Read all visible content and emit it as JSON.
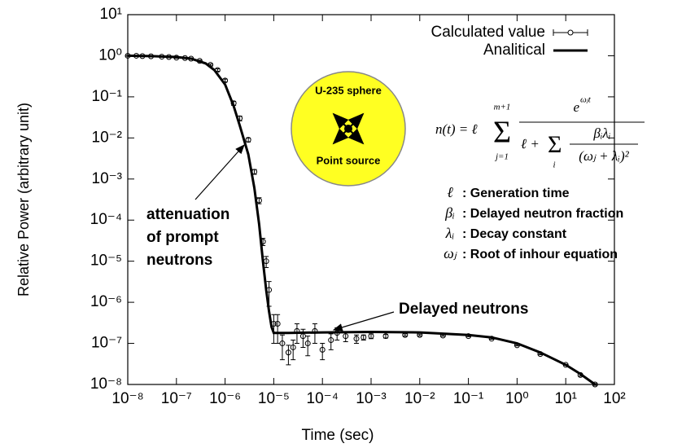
{
  "chart_data": {
    "type": "line",
    "xlabel": "Time (sec)",
    "ylabel": "Relative Power (arbitrary unit)",
    "xscale": "log",
    "yscale": "log",
    "grid": false,
    "legend": "upper right",
    "xlim": [
      1e-08,
      100
    ],
    "ylim": [
      1e-08,
      10
    ],
    "xticks": [
      {
        "value": 1e-08,
        "label": "10⁻⁸"
      },
      {
        "value": 1e-07,
        "label": "10⁻⁷"
      },
      {
        "value": 1e-06,
        "label": "10⁻⁶"
      },
      {
        "value": 1e-05,
        "label": "10⁻⁵"
      },
      {
        "value": 0.0001,
        "label": "10⁻⁴"
      },
      {
        "value": 0.001,
        "label": "10⁻³"
      },
      {
        "value": 0.01,
        "label": "10⁻²"
      },
      {
        "value": 0.1,
        "label": "10⁻¹"
      },
      {
        "value": 1,
        "label": "10⁰"
      },
      {
        "value": 10,
        "label": "10¹"
      },
      {
        "value": 100,
        "label": "10²"
      }
    ],
    "yticks": [
      {
        "value": 1e-08,
        "label": "10⁻⁸"
      },
      {
        "value": 1e-07,
        "label": "10⁻⁷"
      },
      {
        "value": 1e-06,
        "label": "10⁻⁶"
      },
      {
        "value": 1e-05,
        "label": "10⁻⁵"
      },
      {
        "value": 0.0001,
        "label": "10⁻⁴"
      },
      {
        "value": 0.001,
        "label": "10⁻³"
      },
      {
        "value": 0.01,
        "label": "10⁻²"
      },
      {
        "value": 0.1,
        "label": "10⁻¹"
      },
      {
        "value": 1,
        "label": "10⁰"
      },
      {
        "value": 10,
        "label": "10¹"
      }
    ],
    "series": [
      {
        "name": "Calculated value",
        "color": "#000000",
        "style": "points-errorbars",
        "x": [
          1e-08,
          1.5e-08,
          2e-08,
          3e-08,
          5e-08,
          7e-08,
          1e-07,
          1.5e-07,
          2e-07,
          3e-07,
          5e-07,
          7e-07,
          1e-06,
          1.5e-06,
          2e-06,
          3e-06,
          4e-06,
          5e-06,
          6e-06,
          7e-06,
          8e-06,
          1e-05,
          1.2e-05,
          1.5e-05,
          2e-05,
          2.5e-05,
          3e-05,
          4e-05,
          5e-05,
          7e-05,
          0.0001,
          0.00015,
          0.0002,
          0.0003,
          0.0005,
          0.0007,
          0.001,
          0.002,
          0.005,
          0.01,
          0.03,
          0.1,
          0.3,
          1,
          3,
          10,
          20,
          40
        ],
        "values": [
          1,
          1,
          0.98,
          0.97,
          0.95,
          0.93,
          0.9,
          0.88,
          0.85,
          0.75,
          0.6,
          0.45,
          0.25,
          0.07,
          0.03,
          0.009,
          0.0015,
          0.0003,
          3e-05,
          1e-05,
          2e-06,
          3e-07,
          3e-07,
          1e-07,
          6e-08,
          8e-08,
          2e-07,
          1.5e-07,
          1e-07,
          2e-07,
          7e-08,
          1.2e-07,
          1.8e-07,
          1.5e-07,
          1.3e-07,
          1.4e-07,
          1.5e-07,
          1.5e-07,
          1.6e-07,
          1.6e-07,
          1.55e-07,
          1.5e-07,
          1.3e-07,
          9e-08,
          5.5e-08,
          3e-08,
          1.7e-08,
          1e-08
        ],
        "errors": [
          0.03,
          0.03,
          0.03,
          0.03,
          0.03,
          0.03,
          0.03,
          0.03,
          0.03,
          0.03,
          0.03,
          0.03,
          0.02,
          0.008,
          0.004,
          0.001,
          0.0002,
          5e-05,
          6e-06,
          3e-06,
          1.2e-06,
          2e-07,
          2e-07,
          6e-08,
          3e-08,
          4e-08,
          1e-07,
          7e-08,
          5e-08,
          1e-07,
          3e-08,
          5e-08,
          6e-08,
          4e-08,
          3e-08,
          2e-08,
          2e-08,
          1.5e-08,
          1e-08,
          8e-09,
          6e-09,
          5e-09,
          4e-09,
          3e-09,
          2e-09,
          1e-09,
          1e-09,
          5e-10
        ]
      },
      {
        "name": "Analitical",
        "color": "#000000",
        "style": "line",
        "x": [
          1e-08,
          3e-08,
          1e-07,
          2e-07,
          4e-07,
          6e-07,
          1e-06,
          1.5e-06,
          2e-06,
          3e-06,
          4e-06,
          5e-06,
          6e-06,
          7e-06,
          8e-06,
          9e-06,
          1e-05,
          2e-05,
          0.0001,
          0.001,
          0.01,
          0.1,
          0.3,
          1,
          3,
          10,
          20,
          40
        ],
        "values": [
          1,
          0.98,
          0.93,
          0.85,
          0.65,
          0.45,
          0.2,
          0.06,
          0.02,
          0.004,
          0.0006,
          8e-05,
          1e-05,
          2e-06,
          6e-07,
          2.5e-07,
          1.8e-07,
          1.8e-07,
          1.85e-07,
          1.9e-07,
          1.85e-07,
          1.6e-07,
          1.4e-07,
          1e-07,
          6e-08,
          3e-08,
          1.8e-08,
          1e-08
        ]
      }
    ],
    "annotations": {
      "prompt": [
        "attenuation",
        "of prompt",
        "neutrons"
      ],
      "delayed": "Delayed neutrons",
      "sphere_title": "U-235 sphere",
      "sphere_source": "Point source"
    },
    "formula": {
      "lhs": "n(t) = ℓ",
      "sum_top": "m+1",
      "sum_bottom": "j=1",
      "numerator": "e",
      "numerator_exp": "ωⱼt",
      "den_left": "ℓ +",
      "den_sum_bottom": "i",
      "den_num": "βᵢλᵢ",
      "den_den": "(ωⱼ + λᵢ)²"
    },
    "definitions": [
      {
        "symbol": "ℓ",
        "text": ": Generation time"
      },
      {
        "symbol": "βᵢ",
        "text": ": Delayed neutron fraction"
      },
      {
        "symbol": "λᵢ",
        "text": ": Decay constant"
      },
      {
        "symbol": "ωⱼ",
        "text": ": Root of inhour equation"
      }
    ]
  }
}
